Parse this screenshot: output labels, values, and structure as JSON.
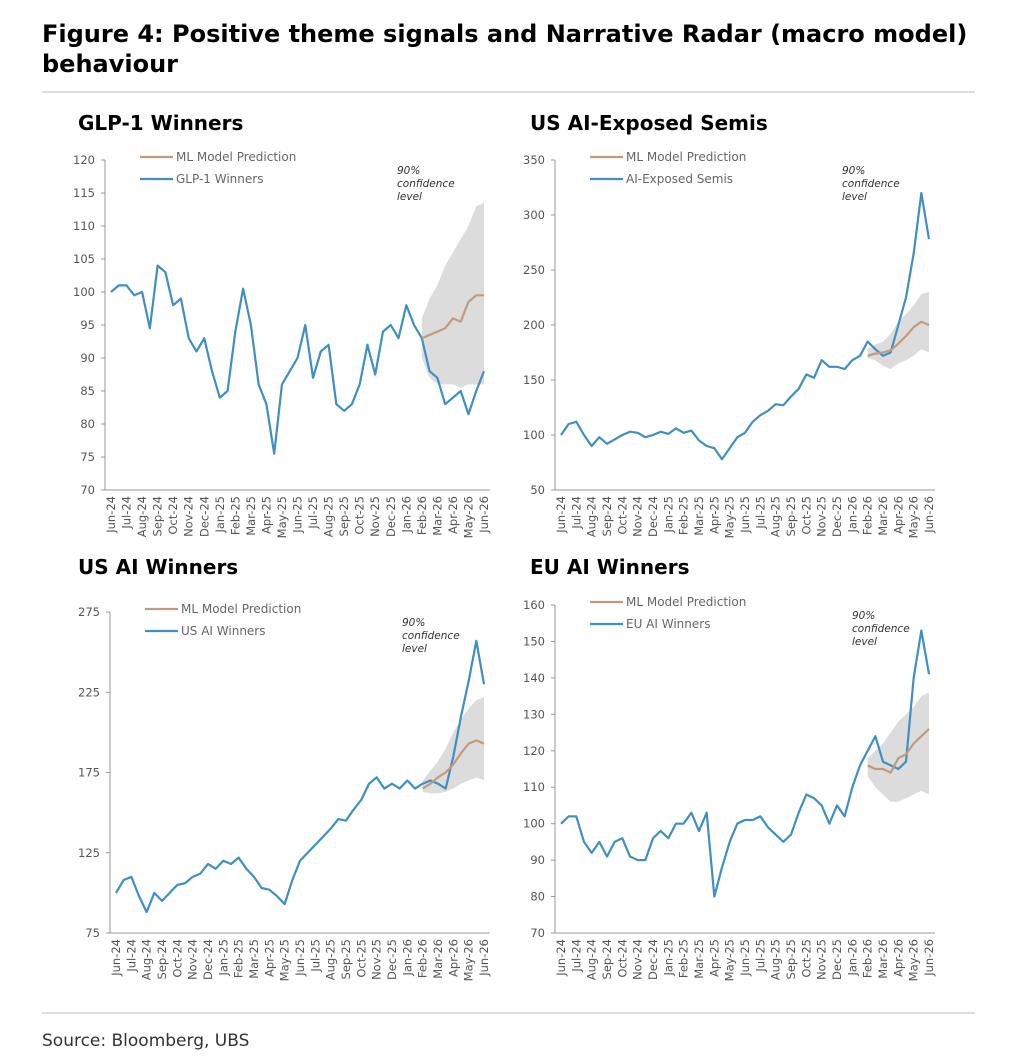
{
  "title": "Figure 4: Positive theme signals and Narrative Radar (macro model) behaviour",
  "source": "Source: Bloomberg, UBS",
  "chart_data": [
    {
      "type": "line",
      "title": "GLP-1 Winners",
      "annotation": [
        "90%",
        "confidence",
        "level"
      ],
      "categories": [
        "Jun-24",
        null,
        "Jul-24",
        null,
        "Aug-24",
        null,
        "Sep-24",
        null,
        "Oct-24",
        null,
        "Nov-24",
        null,
        "Dec-24",
        null,
        "Jan-25",
        null,
        "Feb-25",
        null,
        "Mar-25",
        null,
        "Apr-25",
        null,
        "May-25",
        null,
        "Jun-25",
        null,
        "Jul-25",
        null,
        "Aug-25",
        null,
        "Sep-25",
        null,
        "Oct-25",
        null,
        "Nov-25",
        null,
        "Dec-25",
        null,
        "Jan-26",
        null,
        "Feb-26",
        null,
        "Mar-26",
        null,
        "Apr-26",
        null,
        "May-26",
        null,
        "Jun-26"
      ],
      "ylim": [
        70,
        120
      ],
      "yticks": [
        70,
        75,
        80,
        85,
        90,
        95,
        100,
        105,
        110,
        115,
        120
      ],
      "band": {
        "color": "#dcdcdc",
        "lower": [
          null,
          null,
          null,
          null,
          null,
          null,
          null,
          null,
          null,
          null,
          null,
          null,
          null,
          null,
          null,
          null,
          null,
          null,
          null,
          null,
          null,
          null,
          null,
          null,
          null,
          null,
          null,
          null,
          null,
          null,
          null,
          null,
          null,
          null,
          null,
          null,
          null,
          null,
          null,
          null,
          90,
          87,
          86,
          86,
          86,
          85.5,
          86,
          86,
          86
        ],
        "upper": [
          null,
          null,
          null,
          null,
          null,
          null,
          null,
          null,
          null,
          null,
          null,
          null,
          null,
          null,
          null,
          null,
          null,
          null,
          null,
          null,
          null,
          null,
          null,
          null,
          null,
          null,
          null,
          null,
          null,
          null,
          null,
          null,
          null,
          null,
          null,
          null,
          null,
          null,
          null,
          null,
          96,
          99,
          101,
          104,
          106,
          108,
          110,
          113,
          113.5
        ]
      },
      "series": [
        {
          "name": "ML Model Prediction",
          "color": "#c29b7c",
          "values": [
            null,
            null,
            null,
            null,
            null,
            null,
            null,
            null,
            null,
            null,
            null,
            null,
            null,
            null,
            null,
            null,
            null,
            null,
            null,
            null,
            null,
            null,
            null,
            null,
            null,
            null,
            null,
            null,
            null,
            null,
            null,
            null,
            null,
            null,
            null,
            null,
            null,
            null,
            null,
            null,
            93,
            93.5,
            94,
            94.5,
            96,
            95.5,
            98.5,
            99.5,
            99.5
          ]
        },
        {
          "name": "GLP-1 Winners",
          "color": "#3f8fc3",
          "values": [
            100,
            101,
            101,
            99.5,
            100,
            94.5,
            104,
            103,
            98,
            99,
            93,
            91,
            93,
            88,
            84,
            85,
            94,
            100.5,
            95,
            86,
            83,
            75.5,
            86,
            88,
            90,
            95,
            87,
            91,
            92,
            83,
            82,
            83,
            86,
            92,
            87.5,
            94,
            95,
            93,
            98,
            95,
            93,
            88,
            87,
            83,
            84,
            85,
            81.5,
            85,
            88
          ]
        }
      ]
    },
    {
      "type": "line",
      "title": "US AI-Exposed Semis",
      "annotation": [
        "90%",
        "confidence",
        "level"
      ],
      "categories": [
        "Jun-24",
        null,
        "Jul-24",
        null,
        "Aug-24",
        null,
        "Sep-24",
        null,
        "Oct-24",
        null,
        "Nov-24",
        null,
        "Dec-24",
        null,
        "Jan-25",
        null,
        "Feb-25",
        null,
        "Mar-25",
        null,
        "Apr-25",
        null,
        "May-25",
        null,
        "Jun-25",
        null,
        "Jul-25",
        null,
        "Aug-25",
        null,
        "Sep-25",
        null,
        "Oct-25",
        null,
        "Nov-25",
        null,
        "Dec-25",
        null,
        "Jan-26",
        null,
        "Feb-26",
        null,
        "Mar-26",
        null,
        "Apr-26",
        null,
        "May-26",
        null,
        "Jun-26"
      ],
      "ylim": [
        50,
        350
      ],
      "yticks": [
        50,
        100,
        150,
        200,
        250,
        300,
        350
      ],
      "band": {
        "color": "#dcdcdc",
        "lower": [
          null,
          null,
          null,
          null,
          null,
          null,
          null,
          null,
          null,
          null,
          null,
          null,
          null,
          null,
          null,
          null,
          null,
          null,
          null,
          null,
          null,
          null,
          null,
          null,
          null,
          null,
          null,
          null,
          null,
          null,
          null,
          null,
          null,
          null,
          null,
          null,
          null,
          null,
          null,
          null,
          170,
          168,
          163,
          160,
          165,
          168,
          172,
          178,
          175
        ],
        "upper": [
          null,
          null,
          null,
          null,
          null,
          null,
          null,
          null,
          null,
          null,
          null,
          null,
          null,
          null,
          null,
          null,
          null,
          null,
          null,
          null,
          null,
          null,
          null,
          null,
          null,
          null,
          null,
          null,
          null,
          null,
          null,
          null,
          null,
          null,
          null,
          null,
          null,
          null,
          null,
          null,
          178,
          182,
          185,
          192,
          203,
          210,
          218,
          228,
          230
        ]
      },
      "series": [
        {
          "name": "ML Model Prediction",
          "color": "#c29b7c",
          "values": [
            null,
            null,
            null,
            null,
            null,
            null,
            null,
            null,
            null,
            null,
            null,
            null,
            null,
            null,
            null,
            null,
            null,
            null,
            null,
            null,
            null,
            null,
            null,
            null,
            null,
            null,
            null,
            null,
            null,
            null,
            null,
            null,
            null,
            null,
            null,
            null,
            null,
            null,
            null,
            null,
            172,
            174,
            175,
            177,
            183,
            190,
            198,
            203,
            200
          ]
        },
        {
          "name": "AI-Exposed Semis",
          "color": "#3f8fc3",
          "values": [
            100,
            110,
            112,
            100,
            90,
            98,
            92,
            96,
            100,
            103,
            102,
            98,
            100,
            103,
            101,
            106,
            102,
            104,
            95,
            90,
            88,
            78,
            88,
            98,
            102,
            112,
            118,
            122,
            128,
            127,
            135,
            142,
            155,
            152,
            168,
            162,
            162,
            160,
            168,
            172,
            185,
            178,
            172,
            175,
            200,
            225,
            265,
            320,
            278
          ]
        }
      ]
    },
    {
      "type": "line",
      "title": "US AI Winners",
      "annotation": [
        "90%",
        "confidence",
        "level"
      ],
      "categories": [
        "Jun-24",
        null,
        "Jul-24",
        null,
        "Aug-24",
        null,
        "Sep-24",
        null,
        "Oct-24",
        null,
        "Nov-24",
        null,
        "Dec-24",
        null,
        "Jan-25",
        null,
        "Feb-25",
        null,
        "Mar-25",
        null,
        "Apr-25",
        null,
        "May-25",
        null,
        "Jun-25",
        null,
        "Jul-25",
        null,
        "Aug-25",
        null,
        "Sep-25",
        null,
        "Oct-25",
        null,
        "Nov-25",
        null,
        "Dec-25",
        null,
        "Jan-26",
        null,
        "Feb-26",
        null,
        "Mar-26",
        null,
        "Apr-26",
        null,
        "May-26",
        null,
        "Jun-26"
      ],
      "ylim": [
        75,
        275
      ],
      "yticks": [
        75,
        125,
        175,
        225,
        275
      ],
      "band": {
        "color": "#dcdcdc",
        "lower": [
          null,
          null,
          null,
          null,
          null,
          null,
          null,
          null,
          null,
          null,
          null,
          null,
          null,
          null,
          null,
          null,
          null,
          null,
          null,
          null,
          null,
          null,
          null,
          null,
          null,
          null,
          null,
          null,
          null,
          null,
          null,
          null,
          null,
          null,
          null,
          null,
          null,
          null,
          null,
          null,
          163,
          162,
          162,
          163,
          165,
          168,
          170,
          172,
          170
        ],
        "upper": [
          null,
          null,
          null,
          null,
          null,
          null,
          null,
          null,
          null,
          null,
          null,
          null,
          null,
          null,
          null,
          null,
          null,
          null,
          null,
          null,
          null,
          null,
          null,
          null,
          null,
          null,
          null,
          null,
          null,
          null,
          null,
          null,
          null,
          null,
          null,
          null,
          null,
          null,
          null,
          null,
          170,
          176,
          182,
          190,
          200,
          208,
          215,
          220,
          222
        ]
      },
      "series": [
        {
          "name": "ML Model Prediction",
          "color": "#c29b7c",
          "values": [
            null,
            null,
            null,
            null,
            null,
            null,
            null,
            null,
            null,
            null,
            null,
            null,
            null,
            null,
            null,
            null,
            null,
            null,
            null,
            null,
            null,
            null,
            null,
            null,
            null,
            null,
            null,
            null,
            null,
            null,
            null,
            null,
            null,
            null,
            null,
            null,
            null,
            null,
            null,
            null,
            165,
            168,
            172,
            175,
            180,
            187,
            193,
            195,
            193
          ]
        },
        {
          "name": "US AI Winners",
          "color": "#3f8fc3",
          "values": [
            100,
            108,
            110,
            98,
            88,
            100,
            95,
            100,
            105,
            106,
            110,
            112,
            118,
            115,
            120,
            118,
            122,
            115,
            110,
            103,
            102,
            98,
            93,
            108,
            120,
            125,
            130,
            135,
            140,
            146,
            145,
            152,
            158,
            168,
            172,
            165,
            168,
            165,
            170,
            165,
            168,
            170,
            168,
            165,
            185,
            210,
            232,
            257,
            230
          ]
        }
      ]
    },
    {
      "type": "line",
      "title": "EU AI Winners",
      "annotation": [
        "90%",
        "confidence",
        "level"
      ],
      "categories": [
        "Jun-24",
        null,
        "Jul-24",
        null,
        "Aug-24",
        null,
        "Sep-24",
        null,
        "Oct-24",
        null,
        "Nov-24",
        null,
        "Dec-24",
        null,
        "Jan-25",
        null,
        "Feb-25",
        null,
        "Mar-25",
        null,
        "Apr-25",
        null,
        "May-25",
        null,
        "Jun-25",
        null,
        "Jul-25",
        null,
        "Aug-25",
        null,
        "Sep-25",
        null,
        "Oct-25",
        null,
        "Nov-25",
        null,
        "Dec-25",
        null,
        "Jan-26",
        null,
        "Feb-26",
        null,
        "Mar-26",
        null,
        "Apr-26",
        null,
        "May-26",
        null,
        "Jun-26"
      ],
      "ylim": [
        70,
        160
      ],
      "yticks": [
        70,
        80,
        90,
        100,
        110,
        120,
        130,
        140,
        150,
        160
      ],
      "band": {
        "color": "#dcdcdc",
        "lower": [
          null,
          null,
          null,
          null,
          null,
          null,
          null,
          null,
          null,
          null,
          null,
          null,
          null,
          null,
          null,
          null,
          null,
          null,
          null,
          null,
          null,
          null,
          null,
          null,
          null,
          null,
          null,
          null,
          null,
          null,
          null,
          null,
          null,
          null,
          null,
          null,
          null,
          null,
          null,
          null,
          113,
          110,
          108,
          106,
          106,
          107,
          108,
          109,
          108
        ],
        "upper": [
          null,
          null,
          null,
          null,
          null,
          null,
          null,
          null,
          null,
          null,
          null,
          null,
          null,
          null,
          null,
          null,
          null,
          null,
          null,
          null,
          null,
          null,
          null,
          null,
          null,
          null,
          null,
          null,
          null,
          null,
          null,
          null,
          null,
          null,
          null,
          null,
          null,
          null,
          null,
          null,
          118,
          120,
          122,
          125,
          128,
          130,
          132,
          135,
          136
        ]
      },
      "series": [
        {
          "name": "ML Model Prediction",
          "color": "#c29b7c",
          "values": [
            null,
            null,
            null,
            null,
            null,
            null,
            null,
            null,
            null,
            null,
            null,
            null,
            null,
            null,
            null,
            null,
            null,
            null,
            null,
            null,
            null,
            null,
            null,
            null,
            null,
            null,
            null,
            null,
            null,
            null,
            null,
            null,
            null,
            null,
            null,
            null,
            null,
            null,
            null,
            null,
            116,
            115,
            115,
            114,
            118,
            119,
            122,
            124,
            126
          ]
        },
        {
          "name": "EU AI Winners",
          "color": "#3f8fc3",
          "values": [
            100,
            102,
            102,
            95,
            92,
            95,
            91,
            95,
            96,
            91,
            90,
            90,
            96,
            98,
            96,
            100,
            100,
            103,
            98,
            103,
            80,
            88,
            95,
            100,
            101,
            101,
            102,
            99,
            97,
            95,
            97,
            103,
            108,
            107,
            105,
            100,
            105,
            102,
            110,
            116,
            120,
            124,
            117,
            116,
            115,
            117,
            140,
            153,
            141
          ]
        }
      ]
    }
  ]
}
